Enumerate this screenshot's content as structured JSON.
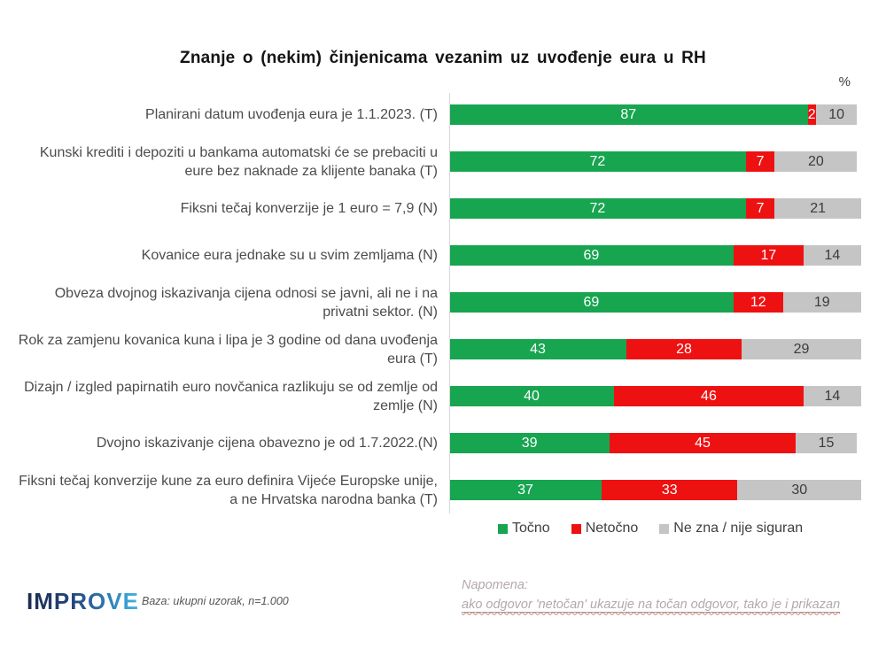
{
  "page": {
    "title": "Znanje o (nekim) činjenicama vezanim uz uvođenje eura u RH",
    "unit_label": "%"
  },
  "chart_data": {
    "type": "bar",
    "orientation": "horizontal",
    "stacked": true,
    "xlim": [
      0,
      100
    ],
    "grid": false,
    "legend_position": "bottom-right",
    "title": "Znanje o (nekim) činjenicama vezanim uz uvođenje eura u RH",
    "legend": [
      {
        "key": "tocno",
        "label": "Točno",
        "color": "#17a550"
      },
      {
        "key": "netocno",
        "label": "Netočno",
        "color": "#ee1111"
      },
      {
        "key": "ne-zna",
        "label": "Ne zna / nije siguran",
        "color": "#c5c5c5"
      }
    ],
    "value_text_colors": {
      "tocno": "#ffffff",
      "netocno": "#ffffff",
      "ne-zna": "#3c3c3c"
    },
    "rows": [
      {
        "label": "Planirani datum uvođenja eura je 1.1.2023. (T)",
        "values": [
          87,
          2,
          10
        ]
      },
      {
        "label": "Kunski krediti i depoziti u bankama automatski će se prebaciti u eure bez naknade za klijente banaka (T)",
        "values": [
          72,
          7,
          20
        ]
      },
      {
        "label": "Fiksni tečaj konverzije je 1 euro = 7,9 (N)",
        "values": [
          72,
          7,
          21
        ]
      },
      {
        "label": "Kovanice eura jednake su u svim zemljama (N)",
        "values": [
          69,
          17,
          14
        ]
      },
      {
        "label": "Obveza dvojnog iskazivanja cijena odnosi se javni, ali ne i na privatni sektor. (N)",
        "values": [
          69,
          12,
          19
        ]
      },
      {
        "label": "Rok za zamjenu kovanica kuna i lipa je 3 godine od dana uvođenja eura (T)",
        "values": [
          43,
          28,
          29
        ]
      },
      {
        "label": "Dizajn / izgled papirnatih euro novčanica razlikuju se od zemlje od zemlje (N)",
        "values": [
          40,
          46,
          14
        ]
      },
      {
        "label": "Dvojno iskazivanje cijena obavezno je od 1.7.2022.(N)",
        "values": [
          39,
          45,
          15
        ]
      },
      {
        "label": "Fiksni tečaj konverzije kune za euro definira Vijeće Europske unije, a ne Hrvatska narodna banka (T)",
        "values": [
          37,
          33,
          30
        ]
      }
    ]
  },
  "footer": {
    "logo_text": "IMPROVE",
    "base_note": "Baza: ukupni uzorak, n=1.000",
    "note_title": "Napomena:",
    "note_body": "ako odgovor 'netočan' ukazuje na točan odgovor, tako je i prikazan"
  }
}
